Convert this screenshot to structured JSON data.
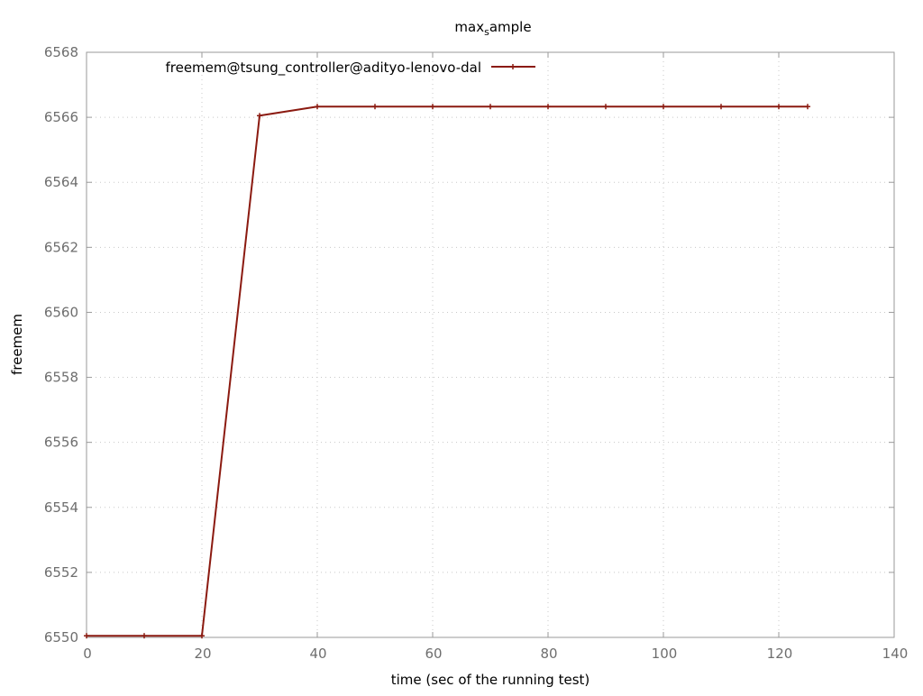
{
  "chart_data": {
    "type": "line",
    "title": {
      "main": "max",
      "subscript": "s",
      "rest": "ample"
    },
    "xlabel": "time (sec of the running test)",
    "ylabel": "freemem",
    "xlim": [
      0,
      140
    ],
    "ylim": [
      6550,
      6568
    ],
    "xticks": [
      "0",
      "20",
      "40",
      "60",
      "80",
      "100",
      "120",
      "140"
    ],
    "yticks": [
      "6550",
      "6552",
      "6554",
      "6556",
      "6558",
      "6560",
      "6562",
      "6564",
      "6566",
      "6568"
    ],
    "grid": true,
    "legend_position": "top-left",
    "series": [
      {
        "name": "freemem@tsung_controller@adityo-lenovo-dal",
        "color": "#8b1a10",
        "marker": "plus",
        "x": [
          0,
          10,
          20,
          30,
          40,
          50,
          60,
          70,
          80,
          90,
          100,
          110,
          120,
          125
        ],
        "y": [
          6550.05,
          6550.05,
          6550.05,
          6566.05,
          6566.33,
          6566.33,
          6566.33,
          6566.33,
          6566.33,
          6566.33,
          6566.33,
          6566.33,
          6566.33,
          6566.33
        ]
      }
    ]
  }
}
